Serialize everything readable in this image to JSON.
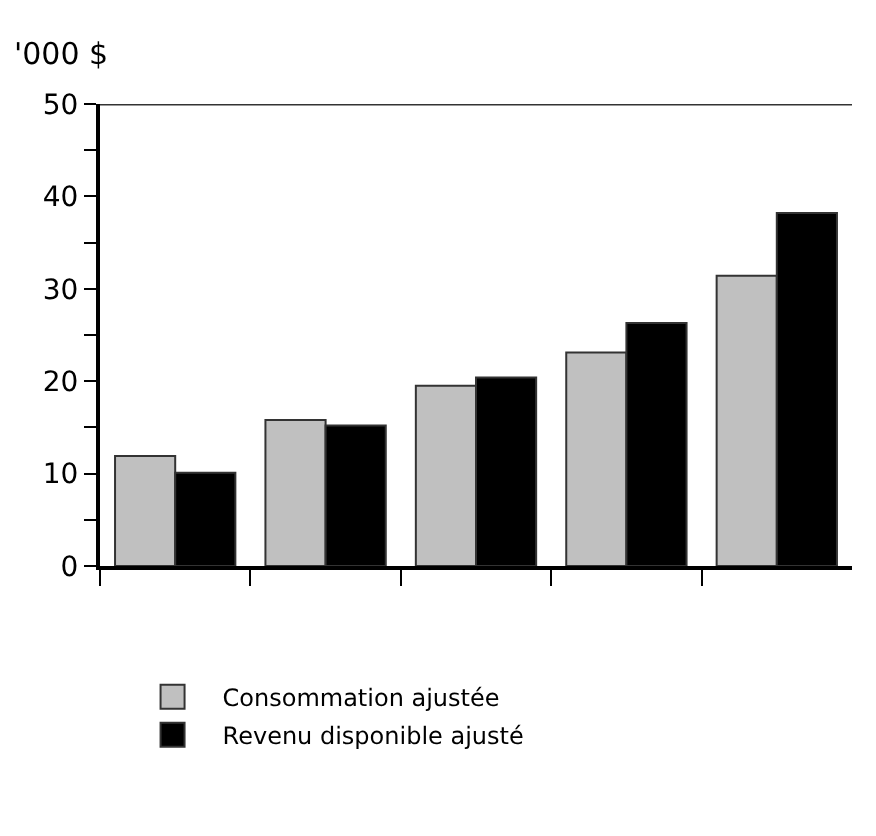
{
  "chart_data": {
    "type": "bar",
    "ylabel": "'000 $",
    "categories": [
      null,
      null,
      null,
      null,
      null
    ],
    "series": [
      {
        "name": "Consommation ajustée",
        "color": "#c0c0c0",
        "values": [
          11.9,
          15.8,
          19.5,
          23.1,
          31.4
        ]
      },
      {
        "name": "Revenu disponible ajusté",
        "color": "#000000",
        "values": [
          10.1,
          15.2,
          20.4,
          26.3,
          38.2
        ]
      }
    ],
    "ylim": [
      0,
      50
    ],
    "yticks": [
      0,
      {
        "value": 5,
        "label": null
      },
      10,
      {
        "value": 15,
        "label": null
      },
      20,
      {
        "value": 25,
        "label": null
      },
      30,
      {
        "value": 35,
        "label": null
      },
      40,
      {
        "value": 45,
        "label": null
      },
      50
    ],
    "legend": "bottom"
  }
}
